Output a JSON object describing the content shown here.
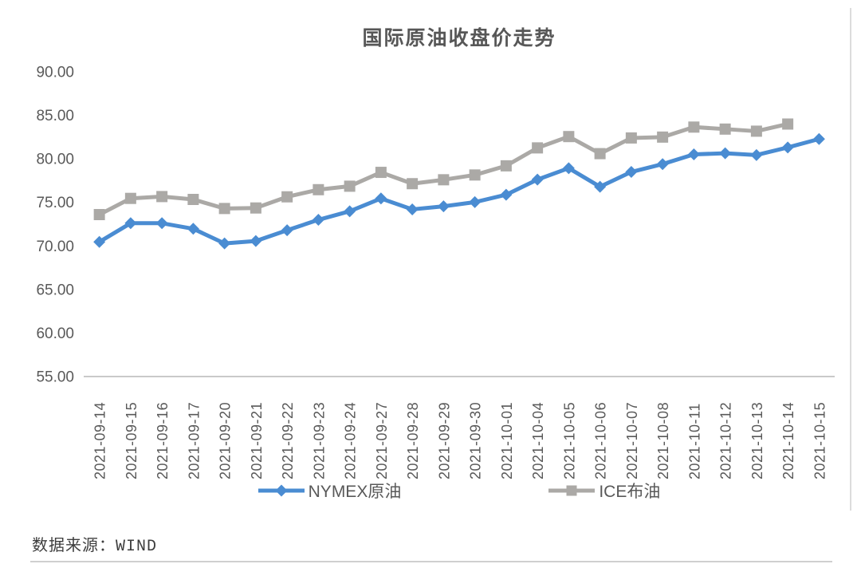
{
  "page": {
    "footer": {
      "source_label": "数据来源：WIND"
    }
  },
  "chart_data": {
    "type": "line",
    "title": "国际原油收盘价走势",
    "categories": [
      "2021-09-14",
      "2021-09-15",
      "2021-09-16",
      "2021-09-17",
      "2021-09-20",
      "2021-09-21",
      "2021-09-22",
      "2021-09-23",
      "2021-09-24",
      "2021-09-27",
      "2021-09-28",
      "2021-09-29",
      "2021-09-30",
      "2021-10-01",
      "2021-10-04",
      "2021-10-05",
      "2021-10-06",
      "2021-10-07",
      "2021-10-08",
      "2021-10-11",
      "2021-10-12",
      "2021-10-13",
      "2021-10-14",
      "2021-10-15"
    ],
    "series": [
      {
        "name": "NYMEX原油",
        "color": "#4A8CD2",
        "marker": "diamond",
        "values": [
          70.46,
          72.61,
          72.61,
          71.97,
          70.29,
          70.56,
          71.8,
          73.0,
          73.98,
          75.45,
          74.2,
          74.55,
          75.03,
          75.88,
          77.62,
          78.93,
          76.8,
          78.5,
          79.4,
          80.52,
          80.64,
          80.44,
          81.31,
          82.28
        ]
      },
      {
        "name": "ICE布油",
        "color": "#ABA9A6",
        "marker": "square",
        "values": [
          73.6,
          75.46,
          75.67,
          75.34,
          74.3,
          74.36,
          75.64,
          76.46,
          76.86,
          78.45,
          77.15,
          77.6,
          78.15,
          79.2,
          81.26,
          82.56,
          80.6,
          82.4,
          82.5,
          83.65,
          83.42,
          83.18,
          84.0,
          null
        ]
      }
    ],
    "y_ticks": [
      "90.00",
      "85.00",
      "80.00",
      "75.00",
      "70.00",
      "65.00",
      "60.00",
      "55.00"
    ],
    "ylim": [
      55,
      90
    ],
    "grid": false,
    "legend_position": "bottom",
    "axis_text_color": "#595959"
  }
}
